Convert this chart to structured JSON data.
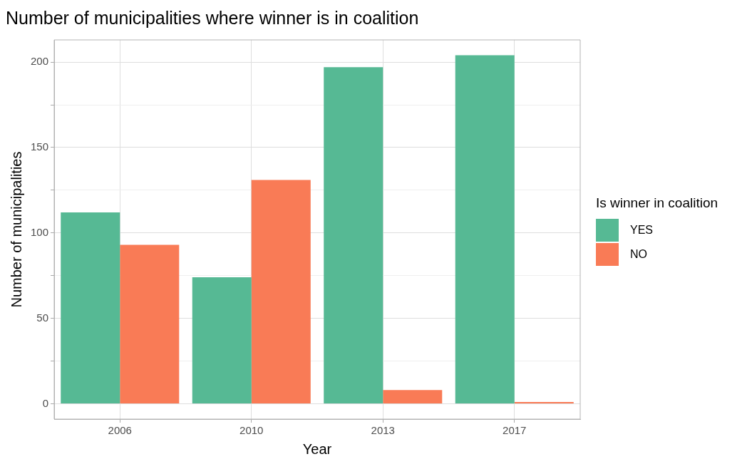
{
  "chart_data": {
    "type": "bar",
    "title": "Number of municipalities where winner is in coalition",
    "xlabel": "Year",
    "ylabel": "Number of municipalities",
    "legend_title": "Is winner in coalition",
    "categories": [
      "2006",
      "2010",
      "2013",
      "2017"
    ],
    "series": [
      {
        "name": "YES",
        "color": "#56b994",
        "values": [
          112,
          74,
          197,
          204
        ]
      },
      {
        "name": "NO",
        "color": "#f97b56",
        "values": [
          93,
          131,
          8,
          1
        ]
      }
    ],
    "ylim": [
      -9,
      213
    ],
    "yticks": [
      0,
      {
        "value": 25,
        "label": null
      },
      50,
      {
        "value": 75,
        "label": null
      },
      100,
      {
        "value": 125,
        "label": null
      },
      150,
      {
        "value": 175,
        "label": null
      },
      200
    ],
    "grid": true,
    "legend": "right"
  }
}
